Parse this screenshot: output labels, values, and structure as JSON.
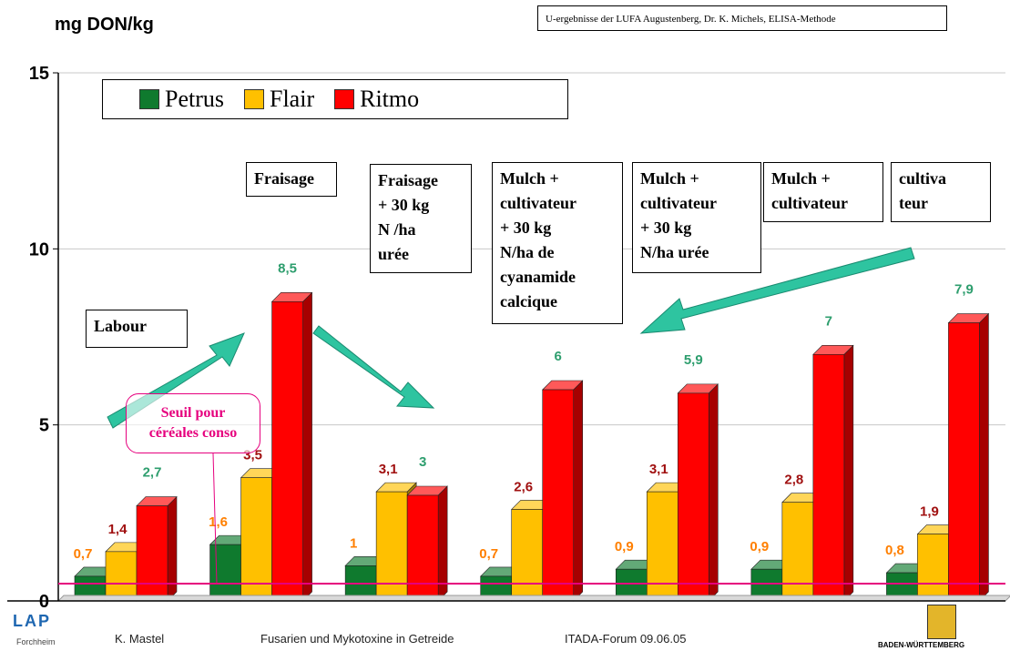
{
  "header": {
    "ylabel": "mg DON/kg",
    "source": "U-ergebnisse der LUFA Augustenberg, Dr. K. Michels, ELISA-Methode"
  },
  "legend": [
    {
      "name": "Petrus",
      "color": "#0f7a2e"
    },
    {
      "name": "Flair",
      "color": "#ffc000"
    },
    {
      "name": "Ritmo",
      "color": "#ff0000"
    }
  ],
  "annotations": {
    "labour": "Labour",
    "fraisage": "Fraisage",
    "fraisage_30": "Fraisage\n+ 30 kg\nN /ha\nurée",
    "mulch_cyanamide": "Mulch +\ncultivateur\n+  30 kg\nN/ha de\ncyanamide\ncalcique",
    "mulch_30": "Mulch +\ncultivateur\n+ 30 kg\nN/ha urée",
    "mulch": "Mulch +\ncultivateur",
    "cultivateur": "cultiva\nteur",
    "threshold": "Seuil pour\ncéréales  conso"
  },
  "footer": {
    "logo": "LAP",
    "logo_sub": "Forchheim",
    "author": "K. Mastel",
    "title": "Fusarien und Mykotoxine in Getreide",
    "event": "ITADA-Forum 09.06.05",
    "crest_text": "BADEN-WÜRTTEMBERG"
  },
  "chart_data": {
    "type": "bar",
    "ylim": [
      0,
      15
    ],
    "yticks": [
      "0",
      "5",
      "10",
      "15"
    ],
    "threshold": 0.5,
    "categories": [
      "Labour",
      "Fraisage",
      "Fraisage + 30 kg N/ha urée",
      "Mulch + cultivateur + 30 kg N/ha de cyanamide calcique",
      "Mulch + cultivateur + 30 kg N/ha urée",
      "Mulch + cultivateur",
      "cultivateur"
    ],
    "series": [
      {
        "name": "Petrus",
        "values": [
          0.7,
          1.6,
          1,
          0.7,
          0.9,
          0.9,
          0.8
        ],
        "labels": [
          "0,7",
          "1,6",
          "1",
          "0,7",
          "0,9",
          "0,9",
          "0,8"
        ],
        "label_color": "#ff7f00"
      },
      {
        "name": "Flair",
        "values": [
          1.4,
          3.5,
          3.1,
          2.6,
          3.1,
          2.8,
          1.9
        ],
        "labels": [
          "1,4",
          "3,5",
          "3,1",
          "2,6",
          "3,1",
          "2,8",
          "1,9"
        ],
        "label_color": "#a01010"
      },
      {
        "name": "Ritmo",
        "values": [
          2.7,
          8.5,
          3,
          6,
          5.9,
          7,
          7.9
        ],
        "labels": [
          "2,7",
          "8,5",
          "3",
          "6",
          "5,9",
          "7",
          "7,9"
        ],
        "label_color": "#2e9e6e"
      }
    ]
  }
}
